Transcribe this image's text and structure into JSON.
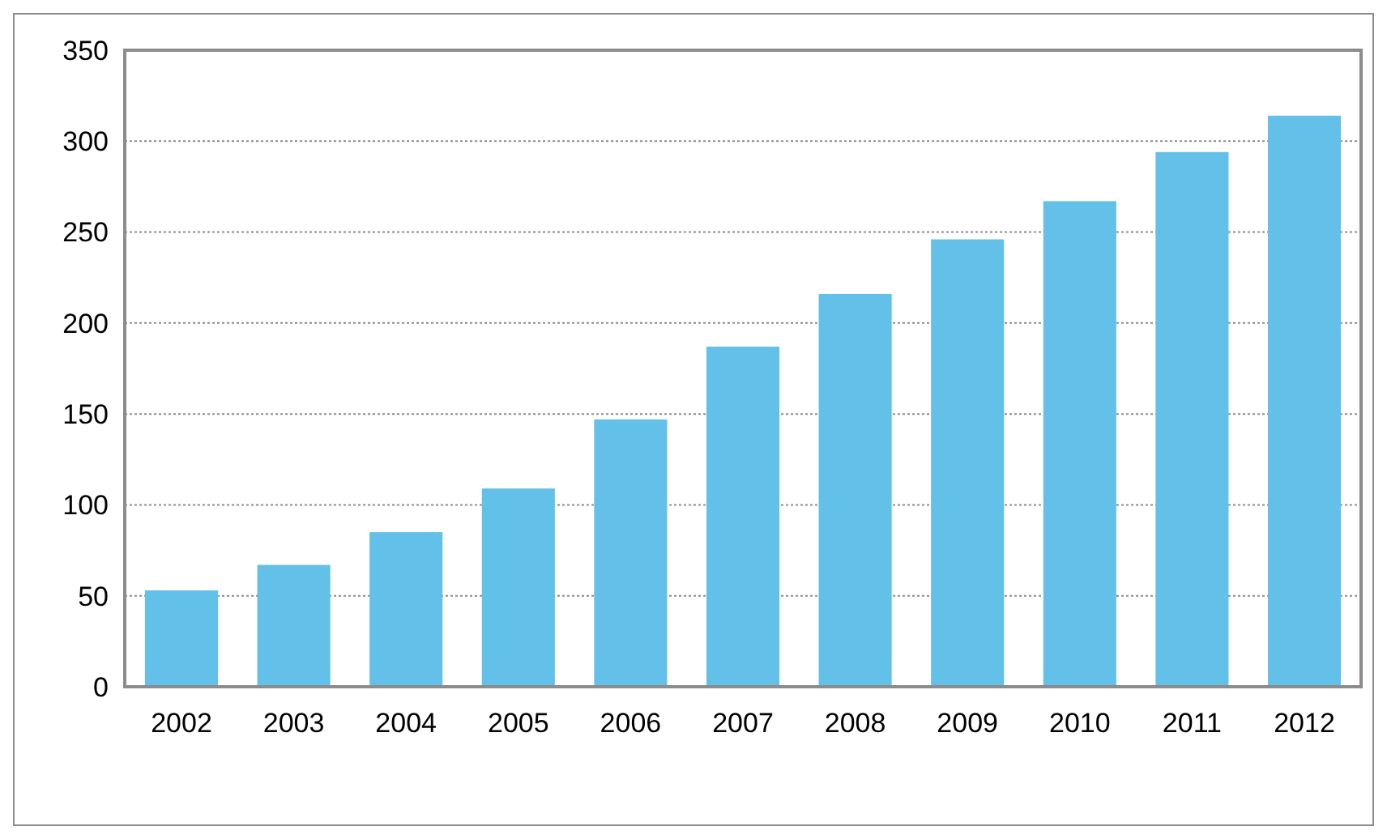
{
  "chart_data": {
    "type": "bar",
    "categories": [
      "2002",
      "2003",
      "2004",
      "2005",
      "2006",
      "2007",
      "2008",
      "2009",
      "2010",
      "2011",
      "2012"
    ],
    "values": [
      53,
      67,
      85,
      109,
      147,
      187,
      216,
      246,
      267,
      294,
      314
    ],
    "color": "#63c0e8",
    "ylim": [
      0,
      350
    ],
    "yticks": [
      0,
      50,
      100,
      150,
      200,
      250,
      300,
      350
    ],
    "grid": "y"
  }
}
